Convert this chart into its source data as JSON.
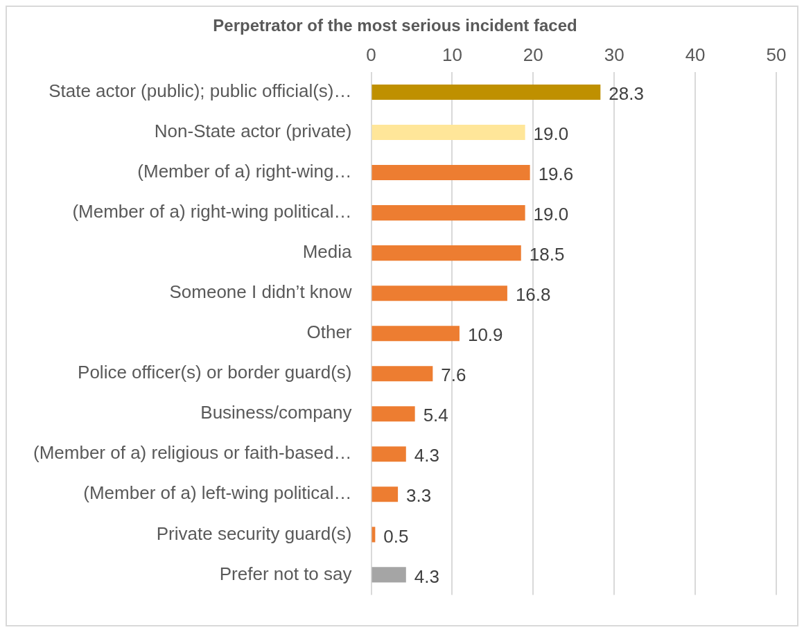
{
  "chart_data": {
    "type": "bar",
    "orientation": "horizontal",
    "title": "Perpetrator of the most serious incident faced",
    "categories": [
      "State actor (public); public official(s)…",
      "Non-State actor (private)",
      "(Member of a) right-wing…",
      "(Member of a) right-wing political…",
      "Media",
      "Someone I didn’t know",
      "Other",
      "Police officer(s) or border guard(s)",
      "Business/company",
      "(Member of a) religious or faith-based…",
      "(Member of a) left-wing political…",
      "Private security guard(s)",
      "Prefer not to say"
    ],
    "values": [
      28.3,
      19.0,
      19.6,
      19.0,
      18.5,
      16.8,
      10.9,
      7.6,
      5.4,
      4.3,
      3.3,
      0.5,
      4.3
    ],
    "colors": [
      "#bf9000",
      "#ffe699",
      "#ed7d31",
      "#ed7d31",
      "#ed7d31",
      "#ed7d31",
      "#ed7d31",
      "#ed7d31",
      "#ed7d31",
      "#ed7d31",
      "#ed7d31",
      "#ed7d31",
      "#a5a5a5"
    ],
    "value_labels": [
      "28.3",
      "19.0",
      "19.6",
      "19.0",
      "18.5",
      "16.8",
      "10.9",
      "7.6",
      "5.4",
      "4.3",
      "3.3",
      "0.5",
      "4.3"
    ],
    "xlim": [
      0,
      50
    ],
    "xticks": [
      0,
      10,
      20,
      30,
      40,
      50
    ],
    "grid": "x",
    "legend": false
  }
}
